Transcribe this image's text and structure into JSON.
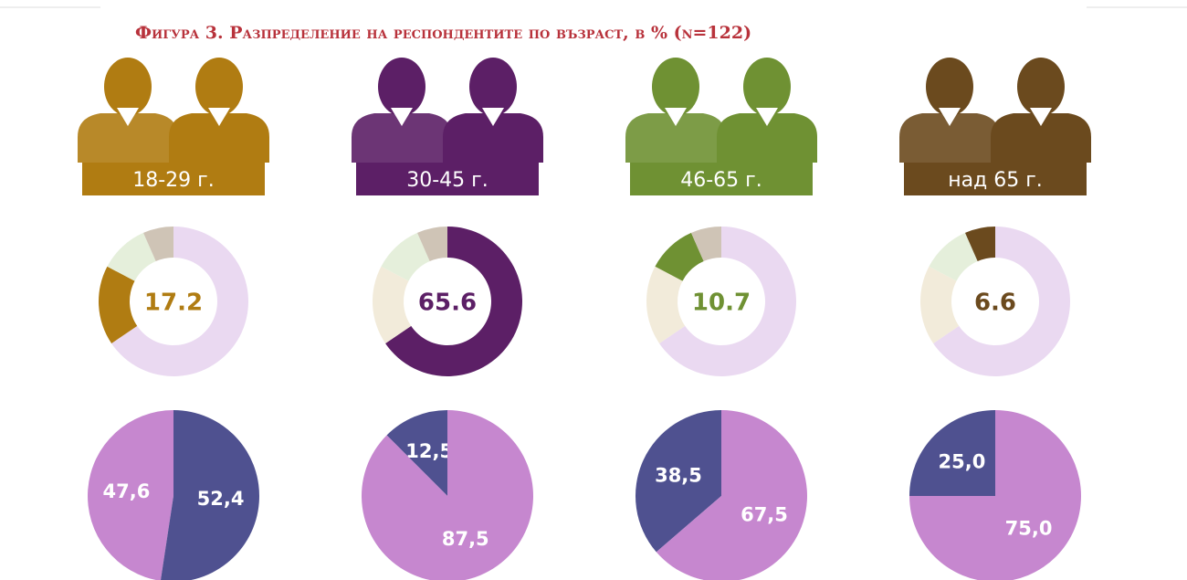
{
  "title": "Фигура 3. Разпределение на респондентите по възраст, в % (n=122)",
  "chart_data": [
    {
      "type": "donut",
      "title": "18-29 г.",
      "values": [
        65.6,
        17.2,
        10.7,
        6.6
      ],
      "colors": [
        "#ead9f1",
        "#b07c12",
        "#e5efdb",
        "#cfc4b6"
      ],
      "label_index": 1
    },
    {
      "type": "donut",
      "title": "30-45 г.",
      "values": [
        65.6,
        17.2,
        10.7,
        6.6
      ],
      "colors": [
        "#5c1f66",
        "#f2ebda",
        "#e5efdb",
        "#cfc4b6"
      ],
      "label_index": 0
    },
    {
      "type": "donut",
      "title": "46-65 г.",
      "values": [
        65.6,
        17.2,
        10.7,
        6.6
      ],
      "colors": [
        "#ead9f1",
        "#f2ebda",
        "#6f9133",
        "#cfc4b6"
      ],
      "label_index": 2
    },
    {
      "type": "donut",
      "title": "над 65 г.",
      "values": [
        65.6,
        17.2,
        10.7,
        6.6
      ],
      "colors": [
        "#ead9f1",
        "#f2ebda",
        "#e5efdb",
        "#6b4a1e"
      ],
      "label_index": 3
    },
    {
      "type": "pie",
      "values": [
        47.6,
        52.4
      ],
      "value_labels": [
        "47,6",
        "52,4"
      ],
      "colors": [
        "#c687cf",
        "#4f5190"
      ]
    },
    {
      "type": "pie",
      "values": [
        12.5,
        87.5
      ],
      "value_labels": [
        "12,5",
        "87,5"
      ],
      "colors": [
        "#4f5190",
        "#c687cf"
      ]
    },
    {
      "type": "pie",
      "values": [
        38.5,
        67.5
      ],
      "value_labels": [
        "38,5",
        "67,5"
      ],
      "colors": [
        "#4f5190",
        "#c687cf"
      ]
    },
    {
      "type": "pie",
      "values": [
        25.0,
        75.0
      ],
      "value_labels": [
        "25,0",
        "75,0"
      ],
      "colors": [
        "#4f5190",
        "#c687cf"
      ]
    }
  ]
}
